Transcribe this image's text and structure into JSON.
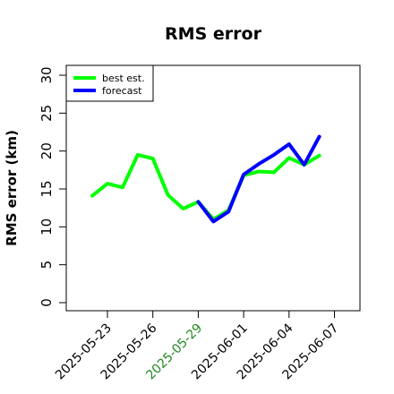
{
  "chart_data": {
    "type": "line",
    "title": "RMS error",
    "xlabel": "",
    "ylabel": "RMS error (km)",
    "ylim": [
      0,
      32
    ],
    "yticks": [
      0,
      5,
      10,
      15,
      20,
      25,
      30
    ],
    "xticks": [
      {
        "label": "2025-05-23",
        "color": "#000000"
      },
      {
        "label": "2025-05-26",
        "color": "#000000"
      },
      {
        "label": "2025-05-29",
        "color": "#228b22"
      },
      {
        "label": "2025-06-01",
        "color": "#000000"
      },
      {
        "label": "2025-06-04",
        "color": "#000000"
      },
      {
        "label": "2025-06-07",
        "color": "#000000"
      }
    ],
    "grid": false,
    "legend": "top-left",
    "series": [
      {
        "name": "best est.",
        "color": "#00ff00",
        "x": [
          "2025-05-22",
          "2025-05-23",
          "2025-05-24",
          "2025-05-25",
          "2025-05-26",
          "2025-05-27",
          "2025-05-28",
          "2025-05-29",
          "2025-05-30",
          "2025-05-31",
          "2025-06-01",
          "2025-06-02",
          "2025-06-03",
          "2025-06-04",
          "2025-06-05",
          "2025-06-06"
        ],
        "values": [
          14.1,
          15.7,
          15.2,
          19.5,
          19.0,
          14.2,
          12.4,
          13.3,
          11.0,
          12.2,
          16.8,
          17.3,
          17.2,
          19.1,
          18.2,
          19.4
        ]
      },
      {
        "name": "forecast",
        "color": "#0000ff",
        "x": [
          "2025-05-29",
          "2025-05-30",
          "2025-05-31",
          "2025-06-01",
          "2025-06-02",
          "2025-06-03",
          "2025-06-04",
          "2025-06-05",
          "2025-06-06"
        ],
        "values": [
          13.3,
          10.7,
          12.0,
          16.9,
          18.3,
          19.5,
          20.9,
          18.2,
          21.9
        ]
      }
    ]
  }
}
